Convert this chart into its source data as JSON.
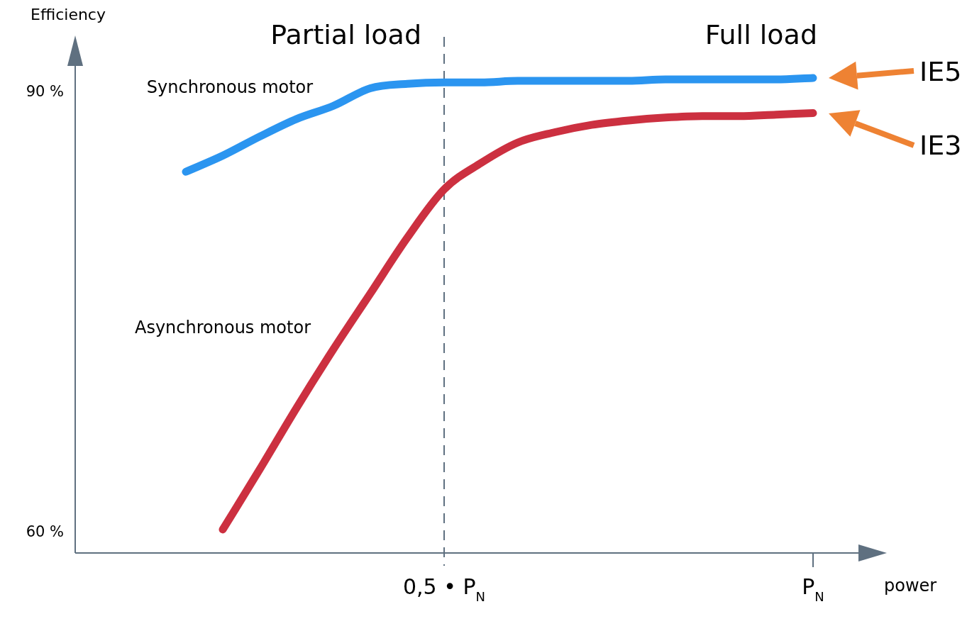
{
  "chart_data": {
    "type": "line",
    "xlabel": "power",
    "ylabel": "Efficiency",
    "categories": [
      null,
      null,
      null,
      null,
      null,
      null,
      null,
      null,
      null,
      null,
      "0,5 • P$_{N}$",
      null,
      null,
      null,
      null,
      null,
      null,
      null,
      null,
      null,
      "P$_{N}$",
      null,
      null
    ],
    "ylim": [
      58.6,
      93.9
    ],
    "yticks": [
      {
        "value": 60,
        "label": "60 %"
      },
      {
        "value": 90,
        "label": "90 %"
      }
    ],
    "series": [
      {
        "name": "Synchronous motor",
        "color": "#2b95f0",
        "values": [
          null,
          null,
          null,
          84.6,
          85.7,
          87.0,
          88.2,
          89.1,
          90.3,
          90.6,
          90.7,
          90.7,
          90.8,
          90.8,
          90.8,
          90.8,
          90.9,
          90.9,
          90.9,
          90.9,
          91.0,
          null,
          null
        ]
      },
      {
        "name": "Asynchronous motor",
        "color": "#cc3040",
        "values": [
          null,
          null,
          null,
          null,
          60.2,
          64.3,
          68.5,
          72.5,
          76.3,
          80.1,
          83.4,
          85.2,
          86.6,
          87.3,
          87.8,
          88.1,
          88.3,
          88.4,
          88.4,
          88.5,
          88.6,
          null,
          null
        ]
      }
    ],
    "ref_lines": [
      {
        "axis": "x",
        "value": "0,5 • P$_{N}$",
        "color": "#5f7080",
        "line_style": "dashed"
      }
    ],
    "annotations": [
      "Partial load",
      "Full load",
      "IE5",
      "IE3"
    ],
    "grid": false,
    "legend": false,
    "marker": "none",
    "line_style": "solid"
  }
}
